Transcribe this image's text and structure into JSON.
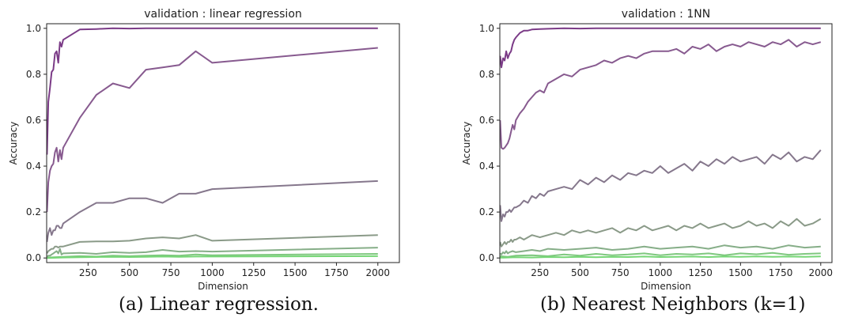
{
  "captions": [
    "(a) Linear regression.",
    "(b) Nearest Neighbors (k=1)"
  ],
  "chart_data": [
    {
      "type": "line",
      "title": "validation : linear regression",
      "xlabel": "Dimension",
      "ylabel": "Accuracy",
      "xlim": [
        0,
        2130
      ],
      "ylim": [
        -0.02,
        1.02
      ],
      "xticks": [
        250,
        500,
        750,
        1000,
        1250,
        1500,
        1750,
        2000
      ],
      "yticks": [
        0.0,
        0.2,
        0.4,
        0.6,
        0.8,
        1.0
      ],
      "grid": false,
      "series": [
        {
          "color": "#7b3b87",
          "x": [
            2,
            10,
            20,
            30,
            40,
            50,
            60,
            70,
            80,
            90,
            100,
            200,
            300,
            400,
            500,
            600,
            700,
            800,
            900,
            1000,
            2000
          ],
          "y": [
            0.45,
            0.68,
            0.74,
            0.81,
            0.82,
            0.89,
            0.9,
            0.85,
            0.94,
            0.92,
            0.95,
            0.995,
            0.997,
            1.0,
            0.999,
            1.0,
            1.0,
            1.0,
            1.0,
            1.0,
            1.0
          ]
        },
        {
          "color": "#875a8f",
          "x": [
            2,
            10,
            20,
            30,
            40,
            50,
            60,
            70,
            80,
            90,
            100,
            200,
            300,
            400,
            500,
            600,
            700,
            800,
            900,
            1000,
            2000
          ],
          "y": [
            0.2,
            0.33,
            0.38,
            0.4,
            0.41,
            0.46,
            0.48,
            0.42,
            0.47,
            0.43,
            0.48,
            0.61,
            0.71,
            0.76,
            0.74,
            0.82,
            0.83,
            0.84,
            0.9,
            0.85,
            0.915
          ]
        },
        {
          "color": "#85778c",
          "x": [
            2,
            10,
            20,
            30,
            40,
            50,
            60,
            70,
            80,
            90,
            100,
            200,
            300,
            400,
            500,
            600,
            700,
            800,
            900,
            1000,
            2000
          ],
          "y": [
            0.07,
            0.11,
            0.13,
            0.1,
            0.12,
            0.12,
            0.14,
            0.14,
            0.13,
            0.13,
            0.15,
            0.2,
            0.24,
            0.24,
            0.26,
            0.26,
            0.24,
            0.28,
            0.28,
            0.3,
            0.335
          ]
        },
        {
          "color": "#8a9a88",
          "x": [
            2,
            10,
            20,
            30,
            40,
            50,
            60,
            70,
            80,
            90,
            100,
            200,
            300,
            400,
            500,
            600,
            700,
            800,
            900,
            1000,
            2000
          ],
          "y": [
            0.02,
            0.03,
            0.035,
            0.04,
            0.04,
            0.05,
            0.05,
            0.045,
            0.05,
            0.05,
            0.05,
            0.07,
            0.072,
            0.072,
            0.075,
            0.085,
            0.09,
            0.085,
            0.1,
            0.075,
            0.1
          ]
        },
        {
          "color": "#86ae88",
          "x": [
            2,
            10,
            20,
            30,
            40,
            50,
            60,
            70,
            80,
            90,
            100,
            200,
            300,
            400,
            500,
            600,
            700,
            800,
            900,
            1000,
            2000
          ],
          "y": [
            0.005,
            0.01,
            0.01,
            0.015,
            0.02,
            0.025,
            0.03,
            0.02,
            0.04,
            0.015,
            0.02,
            0.022,
            0.018,
            0.025,
            0.022,
            0.025,
            0.035,
            0.028,
            0.03,
            0.028,
            0.045
          ]
        },
        {
          "color": "#7fc87f",
          "x": [
            2,
            100,
            200,
            300,
            400,
            500,
            600,
            700,
            800,
            900,
            1000,
            2000
          ],
          "y": [
            0.002,
            0.005,
            0.008,
            0.006,
            0.01,
            0.008,
            0.01,
            0.012,
            0.01,
            0.015,
            0.012,
            0.018
          ]
        },
        {
          "color": "#76d676",
          "x": [
            2,
            100,
            200,
            300,
            400,
            500,
            600,
            700,
            800,
            900,
            1000,
            2000
          ],
          "y": [
            0.0,
            0.002,
            0.003,
            0.004,
            0.005,
            0.004,
            0.005,
            0.006,
            0.005,
            0.006,
            0.006,
            0.008
          ]
        }
      ]
    },
    {
      "type": "line",
      "title": "validation : 1NN",
      "xlabel": "Dimension",
      "ylabel": "Accuracy",
      "xlim": [
        0,
        2070
      ],
      "ylim": [
        -0.02,
        1.02
      ],
      "xticks": [
        250,
        500,
        750,
        1000,
        1250,
        1500,
        1750,
        2000
      ],
      "yticks": [
        0.0,
        0.2,
        0.4,
        0.6,
        0.8,
        1.0
      ],
      "grid": false,
      "series": [
        {
          "color": "#7b3b87",
          "x": [
            2,
            10,
            20,
            30,
            40,
            50,
            60,
            70,
            80,
            90,
            100,
            125,
            150,
            175,
            200,
            250,
            300,
            400,
            500,
            600,
            800,
            1000,
            1200,
            1400,
            1600,
            1800,
            2000
          ],
          "y": [
            0.88,
            0.83,
            0.87,
            0.86,
            0.9,
            0.87,
            0.89,
            0.9,
            0.93,
            0.95,
            0.96,
            0.98,
            0.99,
            0.99,
            0.995,
            0.997,
            0.998,
            1.0,
            0.999,
            1.0,
            1.0,
            1.0,
            1.0,
            1.0,
            1.0,
            1.0,
            1.0
          ]
        },
        {
          "color": "#875a8f",
          "x": [
            2,
            10,
            20,
            30,
            40,
            50,
            60,
            70,
            80,
            90,
            100,
            125,
            150,
            175,
            200,
            225,
            250,
            275,
            300,
            350,
            400,
            450,
            500,
            550,
            600,
            650,
            700,
            750,
            800,
            850,
            900,
            950,
            1000,
            1050,
            1100,
            1150,
            1200,
            1250,
            1300,
            1350,
            1400,
            1450,
            1500,
            1550,
            1600,
            1650,
            1700,
            1750,
            1800,
            1850,
            1900,
            1950,
            2000
          ],
          "y": [
            0.6,
            0.48,
            0.475,
            0.48,
            0.49,
            0.5,
            0.52,
            0.55,
            0.58,
            0.56,
            0.6,
            0.63,
            0.65,
            0.68,
            0.7,
            0.72,
            0.73,
            0.72,
            0.76,
            0.78,
            0.8,
            0.79,
            0.82,
            0.83,
            0.84,
            0.86,
            0.85,
            0.87,
            0.88,
            0.87,
            0.89,
            0.9,
            0.9,
            0.9,
            0.91,
            0.89,
            0.92,
            0.91,
            0.93,
            0.9,
            0.92,
            0.93,
            0.92,
            0.94,
            0.93,
            0.92,
            0.94,
            0.93,
            0.95,
            0.92,
            0.94,
            0.93,
            0.94
          ]
        },
        {
          "color": "#85778c",
          "x": [
            2,
            10,
            20,
            30,
            40,
            50,
            60,
            70,
            80,
            90,
            100,
            125,
            150,
            175,
            200,
            225,
            250,
            275,
            300,
            350,
            400,
            450,
            500,
            550,
            600,
            650,
            700,
            750,
            800,
            850,
            900,
            950,
            1000,
            1050,
            1100,
            1150,
            1200,
            1250,
            1300,
            1350,
            1400,
            1450,
            1500,
            1550,
            1600,
            1650,
            1700,
            1750,
            1800,
            1850,
            1900,
            1950,
            2000
          ],
          "y": [
            0.23,
            0.16,
            0.19,
            0.18,
            0.2,
            0.2,
            0.21,
            0.2,
            0.21,
            0.22,
            0.22,
            0.23,
            0.25,
            0.24,
            0.27,
            0.26,
            0.28,
            0.27,
            0.29,
            0.3,
            0.31,
            0.3,
            0.34,
            0.32,
            0.35,
            0.33,
            0.36,
            0.34,
            0.37,
            0.36,
            0.38,
            0.37,
            0.4,
            0.37,
            0.39,
            0.41,
            0.38,
            0.42,
            0.4,
            0.43,
            0.41,
            0.44,
            0.42,
            0.43,
            0.44,
            0.41,
            0.45,
            0.43,
            0.46,
            0.42,
            0.44,
            0.43,
            0.47
          ]
        },
        {
          "color": "#8a9a88",
          "x": [
            2,
            10,
            20,
            30,
            40,
            50,
            60,
            70,
            80,
            90,
            100,
            125,
            150,
            175,
            200,
            250,
            300,
            350,
            400,
            450,
            500,
            550,
            600,
            650,
            700,
            750,
            800,
            850,
            900,
            950,
            1000,
            1050,
            1100,
            1150,
            1200,
            1250,
            1300,
            1350,
            1400,
            1450,
            1500,
            1550,
            1600,
            1650,
            1700,
            1750,
            1800,
            1850,
            1900,
            1950,
            2000
          ],
          "y": [
            0.07,
            0.05,
            0.06,
            0.07,
            0.06,
            0.07,
            0.07,
            0.08,
            0.07,
            0.08,
            0.08,
            0.09,
            0.08,
            0.09,
            0.1,
            0.09,
            0.1,
            0.11,
            0.1,
            0.12,
            0.11,
            0.12,
            0.11,
            0.12,
            0.13,
            0.11,
            0.13,
            0.12,
            0.14,
            0.12,
            0.13,
            0.14,
            0.12,
            0.14,
            0.13,
            0.15,
            0.13,
            0.14,
            0.15,
            0.13,
            0.14,
            0.16,
            0.14,
            0.15,
            0.13,
            0.16,
            0.14,
            0.17,
            0.14,
            0.15,
            0.17
          ]
        },
        {
          "color": "#86ae88",
          "x": [
            2,
            10,
            20,
            30,
            40,
            50,
            60,
            80,
            100,
            150,
            200,
            250,
            300,
            400,
            500,
            600,
            700,
            800,
            900,
            1000,
            1100,
            1200,
            1300,
            1400,
            1500,
            1600,
            1700,
            1800,
            1900,
            2000
          ],
          "y": [
            0.02,
            0.015,
            0.025,
            0.02,
            0.03,
            0.02,
            0.025,
            0.03,
            0.025,
            0.03,
            0.035,
            0.03,
            0.04,
            0.035,
            0.04,
            0.045,
            0.035,
            0.04,
            0.05,
            0.04,
            0.045,
            0.05,
            0.04,
            0.055,
            0.045,
            0.05,
            0.04,
            0.055,
            0.045,
            0.05
          ]
        },
        {
          "color": "#7fc87f",
          "x": [
            2,
            50,
            100,
            200,
            300,
            400,
            500,
            600,
            700,
            800,
            900,
            1000,
            1100,
            1200,
            1300,
            1400,
            1500,
            1600,
            1700,
            1800,
            1900,
            2000
          ],
          "y": [
            0.008,
            0.005,
            0.01,
            0.012,
            0.008,
            0.015,
            0.01,
            0.018,
            0.012,
            0.015,
            0.02,
            0.012,
            0.018,
            0.015,
            0.02,
            0.012,
            0.02,
            0.016,
            0.022,
            0.014,
            0.018,
            0.02
          ]
        },
        {
          "color": "#76d676",
          "x": [
            2,
            100,
            200,
            300,
            400,
            500,
            600,
            700,
            800,
            900,
            1000,
            1100,
            1200,
            1300,
            1400,
            1500,
            1600,
            1700,
            1800,
            1900,
            2000
          ],
          "y": [
            0.001,
            0.003,
            0.002,
            0.004,
            0.003,
            0.005,
            0.003,
            0.005,
            0.004,
            0.006,
            0.004,
            0.005,
            0.006,
            0.004,
            0.006,
            0.005,
            0.007,
            0.005,
            0.006,
            0.005,
            0.007
          ]
        }
      ]
    }
  ]
}
